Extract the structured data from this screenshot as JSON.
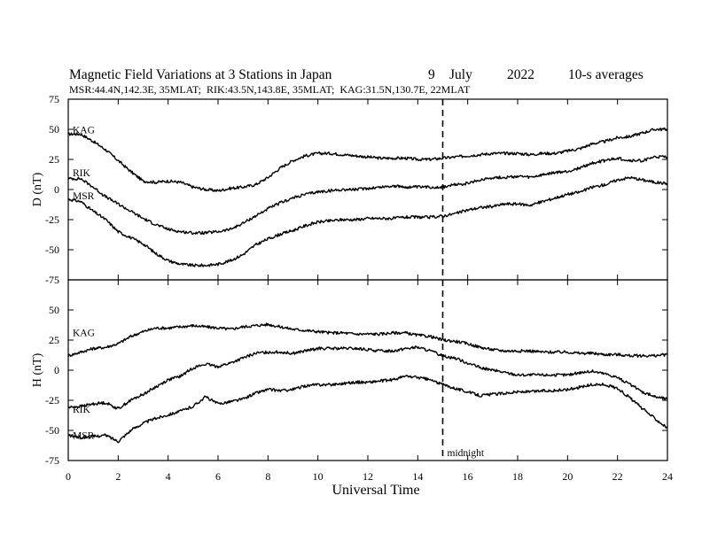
{
  "title": "Magnetic Field Variations at 3 Stations in Japan",
  "date_day": "9",
  "date_month": "July",
  "date_year": "2022",
  "averaging": "10-s averages",
  "subtitle": "MSR:44.4N,142.3E, 35MLAT;  RIK:43.5N,143.8E, 35MLAT;  KAG:31.5N,130.7E, 22MLAT",
  "x_label": "Universal Time",
  "midnight_label": "midnight",
  "chart_data": [
    {
      "type": "line",
      "panel": "top",
      "ylabel": "D (nT)",
      "ylim": [
        -75,
        75
      ],
      "yticks": [
        75,
        50,
        25,
        0,
        -25,
        -50,
        -75
      ],
      "xlim": [
        0,
        24
      ],
      "xticks": [
        0,
        2,
        4,
        6,
        8,
        10,
        12,
        14,
        16,
        18,
        20,
        22,
        24
      ],
      "reference_line_x": 15,
      "series": [
        {
          "name": "KAG",
          "x": [
            0,
            0.5,
            1,
            1.5,
            2,
            2.5,
            3,
            3.5,
            4,
            4.5,
            5,
            5.5,
            6,
            6.5,
            7,
            7.5,
            8,
            8.5,
            9,
            9.5,
            10,
            10.5,
            11,
            11.5,
            12,
            12.5,
            13,
            13.5,
            14,
            14.5,
            15,
            15.5,
            16,
            16.5,
            17,
            17.5,
            18,
            18.5,
            19,
            19.5,
            20,
            20.5,
            21,
            21.5,
            22,
            22.5,
            23,
            23.5,
            24
          ],
          "values": [
            46,
            46,
            40,
            33,
            24,
            15,
            7,
            6,
            7,
            6,
            2,
            0,
            -1,
            1,
            2,
            4,
            10,
            18,
            24,
            28,
            30,
            30,
            29,
            28,
            27,
            26,
            26,
            26,
            25,
            25,
            26,
            27,
            28,
            29,
            30,
            30,
            30,
            29,
            30,
            30,
            32,
            34,
            38,
            40,
            43,
            44,
            47,
            50,
            50
          ]
        },
        {
          "name": "RIK",
          "x": [
            0,
            0.5,
            1,
            1.5,
            2,
            2.5,
            3,
            3.5,
            4,
            4.5,
            5,
            5.5,
            6,
            6.5,
            7,
            7.5,
            8,
            8.5,
            9,
            9.5,
            10,
            10.5,
            11,
            11.5,
            12,
            12.5,
            13,
            13.5,
            14,
            14.5,
            15,
            15.5,
            16,
            16.5,
            17,
            17.5,
            18,
            18.5,
            19,
            19.5,
            20,
            20.5,
            21,
            21.5,
            22,
            22.5,
            23,
            23.5,
            24
          ],
          "values": [
            9,
            9,
            2,
            -6,
            -12,
            -18,
            -24,
            -29,
            -33,
            -35,
            -36,
            -36,
            -35,
            -33,
            -28,
            -22,
            -16,
            -11,
            -7,
            -4,
            -2,
            -1,
            0,
            0,
            1,
            2,
            3,
            2,
            2,
            2,
            2,
            4,
            5,
            8,
            10,
            10,
            11,
            10,
            12,
            14,
            15,
            18,
            22,
            24,
            26,
            24,
            24,
            27,
            27
          ]
        },
        {
          "name": "MSR",
          "x": [
            0,
            0.5,
            1,
            1.5,
            2,
            2.5,
            3,
            3.5,
            4,
            4.5,
            5,
            5.5,
            6,
            6.5,
            7,
            7.5,
            8,
            8.5,
            9,
            9.5,
            10,
            10.5,
            11,
            11.5,
            12,
            12.5,
            13,
            13.5,
            14,
            14.5,
            15,
            15.5,
            16,
            16.5,
            17,
            17.5,
            18,
            18.5,
            19,
            19.5,
            20,
            20.5,
            21,
            21.5,
            22,
            22.5,
            23,
            23.5,
            24
          ],
          "values": [
            -8,
            -10,
            -18,
            -25,
            -35,
            -40,
            -45,
            -53,
            -59,
            -62,
            -63,
            -63,
            -62,
            -59,
            -54,
            -46,
            -41,
            -37,
            -34,
            -30,
            -27,
            -26,
            -25,
            -25,
            -24,
            -24,
            -24,
            -23,
            -23,
            -23,
            -22,
            -20,
            -17,
            -15,
            -14,
            -12,
            -12,
            -13,
            -10,
            -7,
            -4,
            -2,
            2,
            4,
            8,
            10,
            8,
            6,
            5
          ]
        }
      ]
    },
    {
      "type": "line",
      "panel": "bottom",
      "ylabel": "H (nT)",
      "ylim": [
        -75,
        75
      ],
      "yticks": [
        50,
        25,
        0,
        -25,
        -50,
        -75
      ],
      "xlim": [
        0,
        24
      ],
      "xticks": [
        0,
        2,
        4,
        6,
        8,
        10,
        12,
        14,
        16,
        18,
        20,
        22,
        24
      ],
      "xlabel": "Universal Time",
      "reference_line_x": 15,
      "series": [
        {
          "name": "KAG",
          "x": [
            0,
            0.5,
            1,
            1.5,
            2,
            2.5,
            3,
            3.5,
            4,
            4.5,
            5,
            5.5,
            6,
            6.5,
            7,
            7.5,
            8,
            8.5,
            9,
            9.5,
            10,
            10.5,
            11,
            11.5,
            12,
            12.5,
            13,
            13.5,
            14,
            14.5,
            15,
            15.5,
            16,
            16.5,
            17,
            17.5,
            18,
            18.5,
            19,
            19.5,
            20,
            20.5,
            21,
            21.5,
            22,
            22.5,
            23,
            23.5,
            24
          ],
          "values": [
            12,
            15,
            18,
            19,
            22,
            28,
            32,
            35,
            35,
            36,
            37,
            36,
            35,
            34,
            36,
            37,
            38,
            36,
            34,
            33,
            32,
            31,
            31,
            30,
            30,
            30,
            31,
            31,
            29,
            28,
            25,
            24,
            22,
            19,
            17,
            16,
            16,
            16,
            15,
            15,
            15,
            14,
            14,
            13,
            13,
            12,
            12,
            12,
            13
          ]
        },
        {
          "name": "RIK",
          "x": [
            0,
            0.5,
            1,
            1.5,
            2,
            2.5,
            3,
            3.5,
            4,
            4.5,
            5,
            5.5,
            6,
            6.5,
            7,
            7.5,
            8,
            8.5,
            9,
            9.5,
            10,
            10.5,
            11,
            11.5,
            12,
            12.5,
            13,
            13.5,
            14,
            14.5,
            15,
            15.5,
            16,
            16.5,
            17,
            17.5,
            18,
            18.5,
            19,
            19.5,
            20,
            20.5,
            21,
            21.5,
            22,
            22.5,
            23,
            23.5,
            24
          ],
          "values": [
            -31,
            -30,
            -28,
            -27,
            -32,
            -25,
            -20,
            -14,
            -8,
            -5,
            2,
            5,
            3,
            6,
            10,
            14,
            15,
            15,
            14,
            16,
            18,
            18,
            18,
            18,
            17,
            16,
            16,
            18,
            19,
            16,
            12,
            10,
            6,
            2,
            0,
            -2,
            -4,
            -4,
            -4,
            -4,
            -4,
            -2,
            -1,
            -3,
            -6,
            -12,
            -18,
            -22,
            -24
          ]
        },
        {
          "name": "MSR",
          "x": [
            0,
            0.5,
            1,
            1.5,
            2,
            2.5,
            3,
            3.5,
            4,
            4.5,
            5,
            5.5,
            6,
            6.5,
            7,
            7.5,
            8,
            8.5,
            9,
            9.5,
            10,
            10.5,
            11,
            11.5,
            12,
            12.5,
            13,
            13.5,
            14,
            14.5,
            15,
            15.5,
            16,
            16.5,
            17,
            17.5,
            18,
            18.5,
            19,
            19.5,
            20,
            20.5,
            21,
            21.5,
            22,
            22.5,
            23,
            23.5,
            24
          ],
          "values": [
            -54,
            -56,
            -55,
            -54,
            -59,
            -50,
            -44,
            -40,
            -37,
            -34,
            -30,
            -22,
            -28,
            -26,
            -24,
            -19,
            -16,
            -17,
            -16,
            -13,
            -12,
            -12,
            -11,
            -10,
            -10,
            -9,
            -8,
            -5,
            -6,
            -8,
            -12,
            -15,
            -18,
            -21,
            -20,
            -19,
            -18,
            -18,
            -17,
            -17,
            -16,
            -14,
            -12,
            -12,
            -15,
            -23,
            -32,
            -40,
            -48
          ]
        }
      ]
    }
  ]
}
